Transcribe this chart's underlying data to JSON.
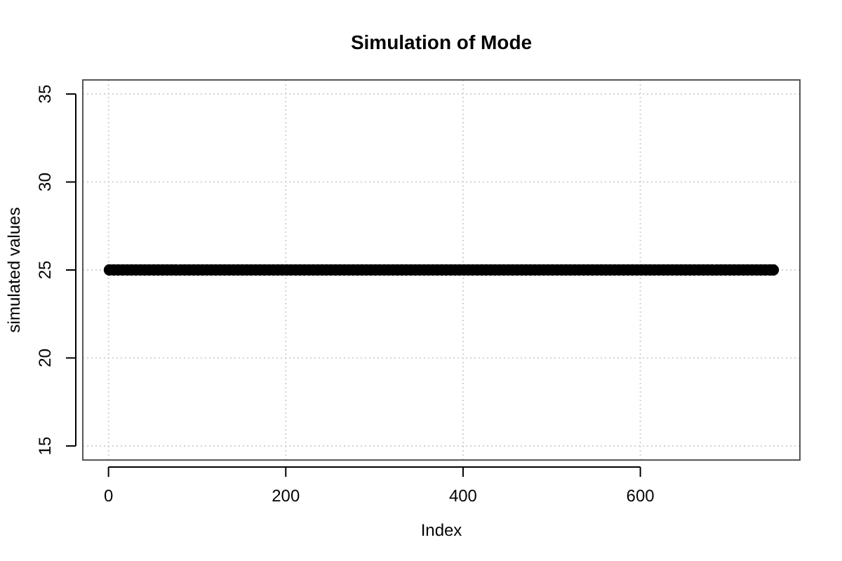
{
  "chart_data": {
    "type": "scatter",
    "title": "Simulation of Mode",
    "xlabel": "Index",
    "ylabel": "simulated values",
    "xlim": [
      -29,
      780
    ],
    "ylim": [
      14.2,
      35.8
    ],
    "xticks": [
      0,
      200,
      400,
      600
    ],
    "yticks": [
      15,
      20,
      25,
      30,
      35
    ],
    "grid": true,
    "marker": "circle",
    "series": [
      {
        "color": "#000000",
        "x": [
          1,
          6,
          11,
          16,
          21,
          26,
          31,
          36,
          41,
          46,
          51,
          56,
          61,
          66,
          71,
          76,
          81,
          86,
          91,
          96,
          101,
          106,
          111,
          116,
          121,
          126,
          131,
          136,
          141,
          146,
          151,
          156,
          161,
          166,
          171,
          176,
          181,
          186,
          191,
          196,
          201,
          206,
          211,
          216,
          221,
          226,
          231,
          236,
          241,
          246,
          251,
          256,
          261,
          266,
          271,
          276,
          281,
          286,
          291,
          296,
          301,
          306,
          311,
          316,
          321,
          326,
          331,
          336,
          341,
          346,
          351,
          356,
          361,
          366,
          371,
          376,
          381,
          386,
          391,
          396,
          401,
          406,
          411,
          416,
          421,
          426,
          431,
          436,
          441,
          446,
          451,
          456,
          461,
          466,
          471,
          476,
          481,
          486,
          491,
          496,
          501,
          506,
          511,
          516,
          521,
          526,
          531,
          536,
          541,
          546,
          551,
          556,
          561,
          566,
          571,
          576,
          581,
          586,
          591,
          596,
          601,
          606,
          611,
          616,
          621,
          626,
          631,
          636,
          641,
          646,
          651,
          656,
          661,
          666,
          671,
          676,
          681,
          686,
          691,
          696,
          701,
          706,
          711,
          716,
          721,
          726,
          731,
          736,
          741,
          746,
          750
        ],
        "values": [
          25,
          25,
          25,
          25,
          25,
          25,
          25,
          25,
          25,
          25,
          25,
          25,
          25,
          25,
          25,
          25,
          25,
          25,
          25,
          25,
          25,
          25,
          25,
          25,
          25,
          25,
          25,
          25,
          25,
          25,
          25,
          25,
          25,
          25,
          25,
          25,
          25,
          25,
          25,
          25,
          25,
          25,
          25,
          25,
          25,
          25,
          25,
          25,
          25,
          25,
          25,
          25,
          25,
          25,
          25,
          25,
          25,
          25,
          25,
          25,
          25,
          25,
          25,
          25,
          25,
          25,
          25,
          25,
          25,
          25,
          25,
          25,
          25,
          25,
          25,
          25,
          25,
          25,
          25,
          25,
          25,
          25,
          25,
          25,
          25,
          25,
          25,
          25,
          25,
          25,
          25,
          25,
          25,
          25,
          25,
          25,
          25,
          25,
          25,
          25,
          25,
          25,
          25,
          25,
          25,
          25,
          25,
          25,
          25,
          25,
          25,
          25,
          25,
          25,
          25,
          25,
          25,
          25,
          25,
          25,
          25,
          25,
          25,
          25,
          25,
          25,
          25,
          25,
          25,
          25,
          25,
          25,
          25,
          25,
          25,
          25,
          25,
          25,
          25,
          25,
          25,
          25,
          25,
          25,
          25,
          25,
          25,
          25,
          25,
          25,
          25
        ]
      }
    ]
  }
}
